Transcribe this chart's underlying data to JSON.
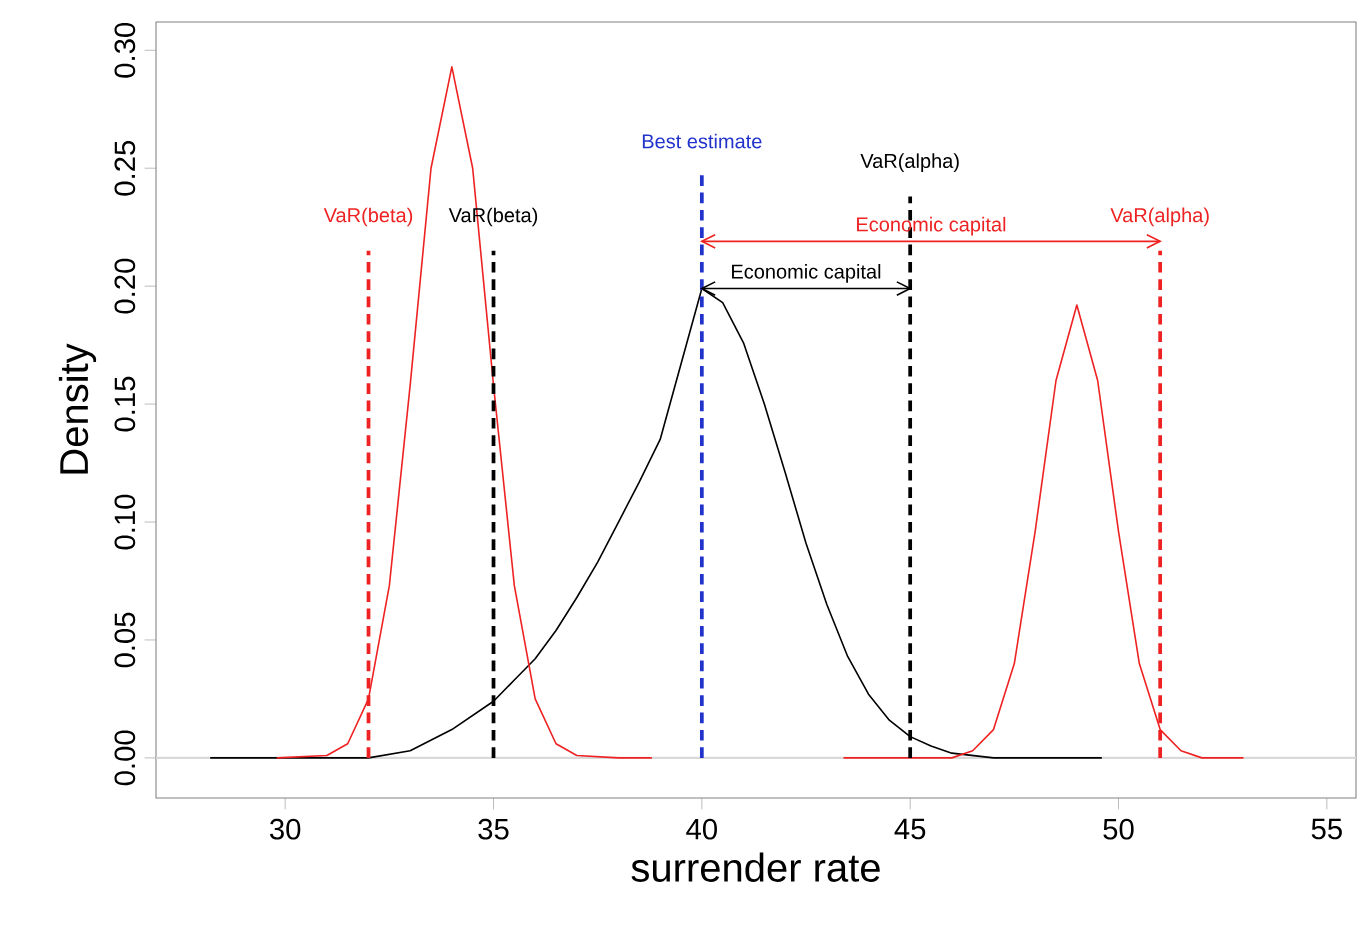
{
  "chart_data": {
    "type": "line",
    "xlabel": "surrender rate",
    "ylabel": "Density",
    "xlim": [
      26.9,
      55.7
    ],
    "ylim": [
      -0.017,
      0.312
    ],
    "xticks": [
      30,
      35,
      40,
      45,
      50,
      55
    ],
    "yticks": [
      {
        "value": 0,
        "label": "0.00"
      },
      {
        "value": 0.05,
        "label": "0.05"
      },
      {
        "value": 0.1,
        "label": "0.10"
      },
      {
        "value": 0.15,
        "label": "0.15"
      },
      {
        "value": 0.2,
        "label": "0.20"
      },
      {
        "value": 0.25,
        "label": "0.25"
      },
      {
        "value": 0.3,
        "label": "0.30"
      }
    ],
    "grid": false,
    "marker": "none",
    "ref_lines": [
      {
        "axis": "y",
        "value": 0,
        "color": "#d9d9d9"
      }
    ],
    "series": [
      {
        "color": "#000000",
        "x": [
          28.2,
          30,
          32,
          33,
          34,
          35,
          35.5,
          36,
          36.5,
          37,
          37.5,
          38,
          38.5,
          39,
          39.5,
          40,
          40.5,
          41,
          41.5,
          42,
          42.5,
          43,
          43.5,
          44,
          44.5,
          45,
          45.5,
          46,
          47,
          48,
          49,
          49.6
        ],
        "values": [
          0,
          0,
          0,
          0.003,
          0.012,
          0.024,
          0.033,
          0.042,
          0.054,
          0.068,
          0.083,
          0.1,
          0.117,
          0.135,
          0.167,
          0.199,
          0.193,
          0.176,
          0.15,
          0.121,
          0.091,
          0.065,
          0.043,
          0.027,
          0.016,
          0.009,
          0.005,
          0.002,
          0,
          0,
          0,
          0
        ]
      },
      {
        "color": "#ee2222",
        "x": [
          29.8,
          31,
          31.5,
          32,
          32.5,
          33,
          33.5,
          34,
          34.5,
          35,
          35.5,
          36,
          36.5,
          37,
          38,
          38.8
        ],
        "values": [
          0,
          0.001,
          0.006,
          0.025,
          0.073,
          0.158,
          0.25,
          0.293,
          0.25,
          0.158,
          0.073,
          0.025,
          0.006,
          0.001,
          0,
          0
        ]
      },
      {
        "color": "#ee2222",
        "x": [
          43.4,
          46,
          46.5,
          47,
          47.5,
          48,
          48.5,
          49,
          49.5,
          50,
          50.5,
          51,
          51.5,
          52,
          53
        ],
        "values": [
          0,
          0,
          0.003,
          0.012,
          0.04,
          0.096,
          0.16,
          0.192,
          0.16,
          0.096,
          0.04,
          0.012,
          0.003,
          0,
          0
        ]
      },
      {
        "name": "VaR(beta)",
        "color": "#ee2222",
        "line_style": "dashed",
        "x": [
          32,
          32
        ],
        "values": [
          0,
          0.215
        ]
      },
      {
        "name": "VaR(beta)",
        "color": "#000000",
        "line_style": "dashed",
        "x": [
          35,
          35
        ],
        "values": [
          0,
          0.215
        ]
      },
      {
        "name": "Best estimate",
        "color": "#2233cc",
        "line_style": "dashed",
        "x": [
          40,
          40
        ],
        "values": [
          0,
          0.248
        ]
      },
      {
        "name": "VaR(alpha)",
        "color": "#000000",
        "line_style": "dashed",
        "x": [
          45,
          45
        ],
        "values": [
          0,
          0.238
        ]
      },
      {
        "name": "VaR(alpha)",
        "color": "#ee2222",
        "line_style": "dashed",
        "x": [
          51,
          51
        ],
        "values": [
          0,
          0.215
        ]
      },
      {
        "name": "Economic capital",
        "color": "#ee2222",
        "x": [
          40,
          51
        ],
        "values": [
          0.219,
          0.219
        ]
      },
      {
        "name": "Economic capital",
        "color": "#000000",
        "x": [
          40,
          45
        ],
        "values": [
          0.199,
          0.199
        ]
      }
    ]
  }
}
